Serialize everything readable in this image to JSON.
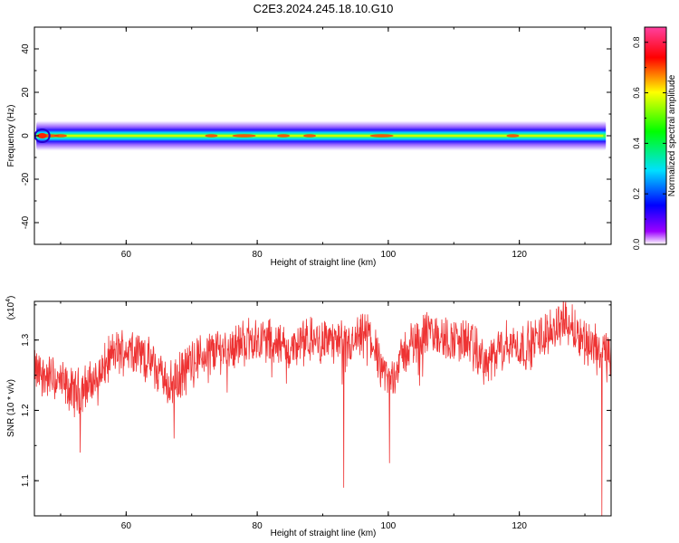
{
  "title": "C2E3.2024.245.18.10.G10",
  "chart_data": [
    {
      "type": "heatmap",
      "xlabel": "Height of straight line (km)",
      "ylabel": "Frequency (Hz)",
      "xlim": [
        46,
        134
      ],
      "ylim": [
        -50,
        50
      ],
      "xticks": [
        "60",
        "80",
        "100",
        "120"
      ],
      "yticks": [
        "40",
        "20",
        "0",
        "-20",
        "-40"
      ],
      "colorbar": {
        "label": "Normalized spectral amplitude",
        "range": [
          0,
          0.86
        ],
        "ticks": [
          "0.0",
          "0.2",
          "0.4",
          "0.6",
          "0.8"
        ],
        "colors": [
          "#ffffff",
          "#8800ff",
          "#0000ff",
          "#00ffff",
          "#00ff00",
          "#ffff00",
          "#ff0000",
          "#ff44aa"
        ]
      },
      "band_center_hz": 0,
      "band_halfwidth_hz": 5,
      "hot_spots_km": [
        48,
        50,
        73,
        78,
        84,
        88,
        99,
        119
      ]
    },
    {
      "type": "line",
      "xlabel": "Height of straight line (km)",
      "ylabel": "SNR (10 * v/v)",
      "multiplier": "(x10",
      "multiplier_exp": "4",
      "xlim": [
        46,
        134
      ],
      "ylim": [
        1.05,
        1.355
      ],
      "xticks": [
        "60",
        "80",
        "100",
        "120"
      ],
      "yticks": [
        "1.1",
        "1.2",
        "1.3"
      ],
      "series": [
        {
          "color": "#ee3333",
          "baseline_x": [
            46,
            49,
            52,
            55,
            58,
            61,
            64,
            67,
            70,
            73,
            76,
            79,
            82,
            85,
            88,
            91,
            94,
            97,
            100,
            103,
            106,
            109,
            112,
            115,
            118,
            121,
            124,
            127,
            130,
            133
          ],
          "baseline_y": [
            1.255,
            1.245,
            1.225,
            1.24,
            1.28,
            1.29,
            1.265,
            1.235,
            1.27,
            1.285,
            1.29,
            1.3,
            1.3,
            1.285,
            1.3,
            1.3,
            1.29,
            1.31,
            1.24,
            1.29,
            1.31,
            1.3,
            1.3,
            1.265,
            1.295,
            1.29,
            1.31,
            1.33,
            1.3,
            1.28
          ],
          "dips": [
            {
              "x": 93.2,
              "y": 1.09
            },
            {
              "x": 100.2,
              "y": 1.125
            },
            {
              "x": 132.6,
              "y": 1.05
            },
            {
              "x": 53.0,
              "y": 1.14
            },
            {
              "x": 67.3,
              "y": 1.16
            }
          ]
        }
      ]
    }
  ]
}
